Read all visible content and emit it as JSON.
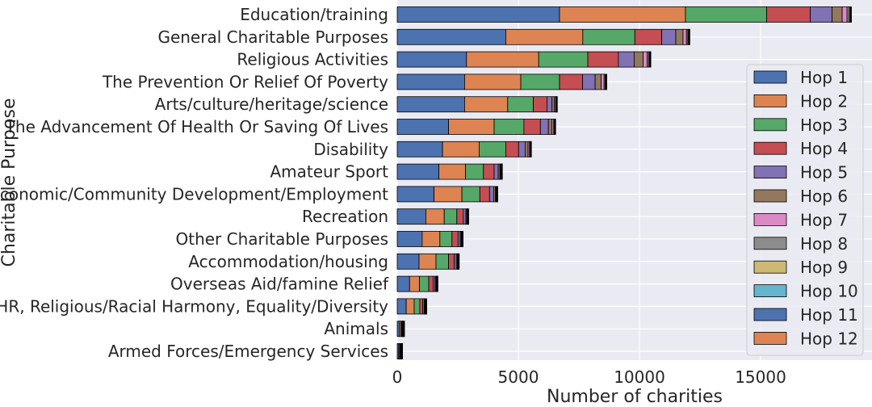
{
  "chart_data": {
    "type": "bar",
    "orientation": "horizontal",
    "stacked": true,
    "title": "",
    "xlabel": "Number of charities",
    "ylabel": "Charitable Purpose",
    "xlim": [
      0,
      19600
    ],
    "xticks": [
      0,
      5000,
      10000,
      15000
    ],
    "grid": true,
    "legend_position": "right",
    "categories": [
      "Education/training",
      "General Charitable Purposes",
      "Religious Activities",
      "The Prevention Or Relief Of Poverty",
      "Arts/culture/heritage/science",
      "The Advancement Of Health Or Saving Of Lives",
      "Disability",
      "Amateur Sport",
      "Economic/Community Development/Employment",
      "Recreation",
      "Other Charitable Purposes",
      "Accommodation/housing",
      "Overseas Aid/famine Relief",
      "HR, Religious/Racial Harmony, Equality/Diversity",
      "Animals",
      "Armed Forces/Emergency Services"
    ],
    "series": [
      {
        "name": "Hop 1",
        "color": "#4c72b0",
        "values": [
          6700,
          4480,
          2860,
          2780,
          2780,
          2120,
          1870,
          1720,
          1520,
          1180,
          1030,
          900,
          510,
          370,
          90,
          60
        ]
      },
      {
        "name": "Hop 2",
        "color": "#dd8452",
        "values": [
          5200,
          3180,
          2980,
          2320,
          1780,
          1880,
          1510,
          1100,
          1150,
          760,
          730,
          700,
          410,
          330,
          60,
          40
        ]
      },
      {
        "name": "Hop 3",
        "color": "#55a868",
        "values": [
          3350,
          2150,
          2030,
          1600,
          1060,
          1230,
          1100,
          740,
          740,
          520,
          500,
          520,
          380,
          230,
          40,
          20
        ]
      },
      {
        "name": "Hop 4",
        "color": "#c44e52",
        "values": [
          1800,
          1110,
          1260,
          950,
          560,
          680,
          530,
          440,
          400,
          270,
          250,
          230,
          180,
          120,
          20,
          10
        ]
      },
      {
        "name": "Hop 5",
        "color": "#8172b3",
        "values": [
          900,
          580,
          650,
          520,
          210,
          330,
          270,
          170,
          170,
          100,
          90,
          90,
          80,
          60,
          10,
          10
        ]
      },
      {
        "name": "Hop 6",
        "color": "#937860",
        "values": [
          420,
          300,
          370,
          250,
          100,
          150,
          120,
          70,
          70,
          40,
          40,
          40,
          40,
          30,
          10,
          10
        ]
      },
      {
        "name": "Hop 7",
        "color": "#da8bc3",
        "values": [
          200,
          140,
          170,
          120,
          50,
          70,
          60,
          30,
          30,
          20,
          20,
          20,
          20,
          20,
          10,
          10
        ]
      },
      {
        "name": "Hop 8",
        "color": "#8c8c8c",
        "values": [
          90,
          60,
          70,
          50,
          20,
          30,
          30,
          20,
          20,
          10,
          10,
          10,
          10,
          10,
          10,
          10
        ]
      },
      {
        "name": "Hop 9",
        "color": "#ccb974",
        "values": [
          40,
          30,
          30,
          20,
          10,
          10,
          10,
          10,
          10,
          10,
          10,
          10,
          10,
          10,
          10,
          10
        ]
      },
      {
        "name": "Hop 10",
        "color": "#64b5cd",
        "values": [
          20,
          20,
          20,
          10,
          10,
          10,
          10,
          10,
          10,
          10,
          10,
          10,
          10,
          10,
          10,
          10
        ]
      },
      {
        "name": "Hop 11",
        "color": "#4c72b0",
        "values": [
          10,
          10,
          10,
          10,
          10,
          10,
          10,
          10,
          10,
          10,
          10,
          10,
          10,
          10,
          10,
          10
        ]
      },
      {
        "name": "Hop 12",
        "color": "#dd8452",
        "values": [
          10,
          10,
          10,
          10,
          10,
          10,
          10,
          10,
          10,
          10,
          10,
          10,
          10,
          10,
          10,
          10
        ]
      }
    ]
  }
}
